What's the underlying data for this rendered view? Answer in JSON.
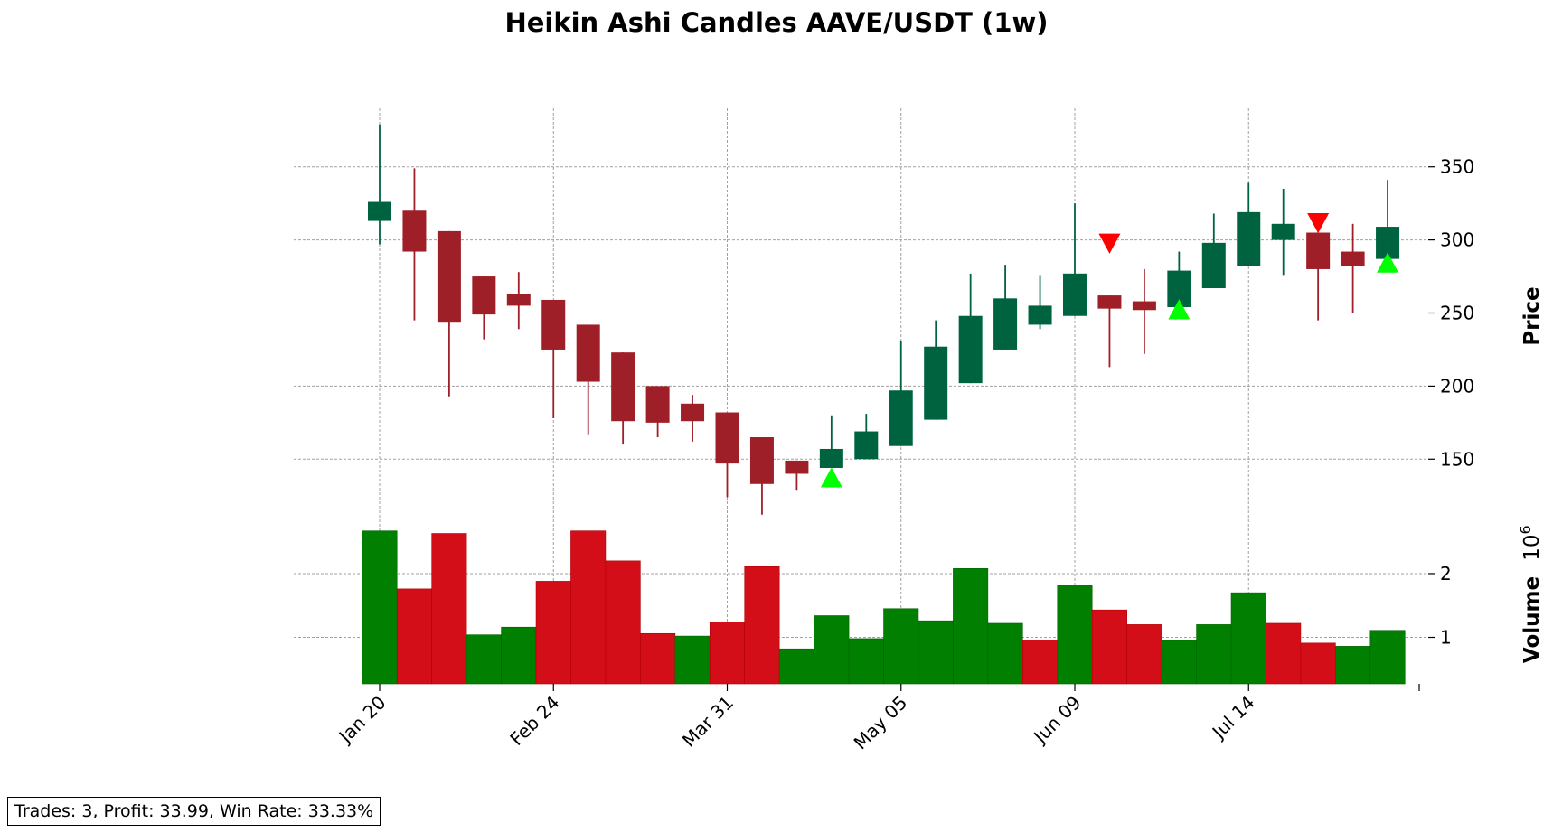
{
  "chart_data": {
    "type": "candlestick",
    "title": "Heikin Ashi Candles AAVE/USDT (1w)",
    "price_panel": {
      "ylabel": "Price",
      "yticks": [
        150,
        200,
        250,
        300,
        350
      ],
      "ylim": [
        110,
        390
      ]
    },
    "volume_panel": {
      "ylabel": "Volume",
      "scale_label": "10^6",
      "yticks": [
        1,
        2
      ],
      "yticks_labels": [
        "1",
        "2"
      ],
      "ylim": [
        0.27,
        2.85
      ]
    },
    "x_tick_labels": [
      "Jan 20",
      "Feb 24",
      "Mar 31",
      "May 05",
      "Jun 09",
      "Jul 14"
    ],
    "x_tick_indices": [
      0,
      5,
      10,
      15,
      20,
      25
    ],
    "grid": true,
    "colors": {
      "up_candle": "#006340",
      "down_candle": "#9f1f28",
      "up_volume": "#007f00",
      "down_volume": "#d40e18",
      "buy_marker": "#00ff00",
      "sell_marker": "#ff0000",
      "grid": "#a0a0a0"
    },
    "candles": [
      {
        "open": 313,
        "close": 326,
        "high": 379,
        "low": 297
      },
      {
        "open": 320,
        "close": 292,
        "high": 349,
        "low": 245
      },
      {
        "open": 306,
        "close": 244,
        "high": 306,
        "low": 193
      },
      {
        "open": 275,
        "close": 249,
        "high": 275,
        "low": 232
      },
      {
        "open": 263,
        "close": 255,
        "high": 278,
        "low": 239
      },
      {
        "open": 259,
        "close": 225,
        "high": 259,
        "low": 178
      },
      {
        "open": 242,
        "close": 203,
        "high": 242,
        "low": 167
      },
      {
        "open": 223,
        "close": 176,
        "high": 223,
        "low": 160
      },
      {
        "open": 200,
        "close": 175,
        "high": 200,
        "low": 165
      },
      {
        "open": 188,
        "close": 176,
        "high": 194,
        "low": 162
      },
      {
        "open": 182,
        "close": 147,
        "high": 182,
        "low": 124
      },
      {
        "open": 165,
        "close": 133,
        "high": 165,
        "low": 112
      },
      {
        "open": 149,
        "close": 140,
        "high": 149,
        "low": 129
      },
      {
        "open": 144,
        "close": 157,
        "high": 180,
        "low": 144
      },
      {
        "open": 150,
        "close": 169,
        "high": 181,
        "low": 150
      },
      {
        "open": 159,
        "close": 197,
        "high": 231,
        "low": 159
      },
      {
        "open": 177,
        "close": 227,
        "high": 245,
        "low": 177
      },
      {
        "open": 202,
        "close": 248,
        "high": 277,
        "low": 202
      },
      {
        "open": 225,
        "close": 260,
        "high": 283,
        "low": 225
      },
      {
        "open": 242,
        "close": 255,
        "high": 276,
        "low": 239
      },
      {
        "open": 248,
        "close": 277,
        "high": 325,
        "low": 248
      },
      {
        "open": 262,
        "close": 253,
        "high": 262,
        "low": 213
      },
      {
        "open": 258,
        "close": 252,
        "high": 280,
        "low": 222
      },
      {
        "open": 254,
        "close": 279,
        "high": 292,
        "low": 254
      },
      {
        "open": 267,
        "close": 298,
        "high": 318,
        "low": 267
      },
      {
        "open": 282,
        "close": 319,
        "high": 339,
        "low": 282
      },
      {
        "open": 300,
        "close": 311,
        "high": 335,
        "low": 276
      },
      {
        "open": 305,
        "close": 280,
        "high": 305,
        "low": 245
      },
      {
        "open": 292,
        "close": 282,
        "high": 311,
        "low": 250
      },
      {
        "open": 287,
        "close": 309,
        "high": 341,
        "low": 287
      }
    ],
    "volumes": [
      2.67,
      1.76,
      2.63,
      1.04,
      1.16,
      1.88,
      2.67,
      2.2,
      1.06,
      1.02,
      1.24,
      2.11,
      0.82,
      1.34,
      0.98,
      1.45,
      1.26,
      2.08,
      1.22,
      0.96,
      1.81,
      1.43,
      1.2,
      0.95,
      1.2,
      1.7,
      1.22,
      0.91,
      0.86,
      1.11
    ],
    "volume_up": [
      true,
      false,
      false,
      true,
      true,
      false,
      false,
      false,
      false,
      true,
      false,
      false,
      true,
      true,
      true,
      true,
      true,
      true,
      true,
      false,
      true,
      false,
      false,
      true,
      true,
      true,
      false,
      false,
      true,
      true
    ],
    "buy_signals": [
      {
        "index": 13,
        "price": 137
      },
      {
        "index": 23,
        "price": 252
      },
      {
        "index": 29,
        "price": 284
      }
    ],
    "sell_signals": [
      {
        "index": 21,
        "price": 298
      },
      {
        "index": 27,
        "price": 312
      }
    ]
  },
  "stats": {
    "text": "Trades: 3, Profit: 33.99, Win Rate: 33.33%"
  }
}
